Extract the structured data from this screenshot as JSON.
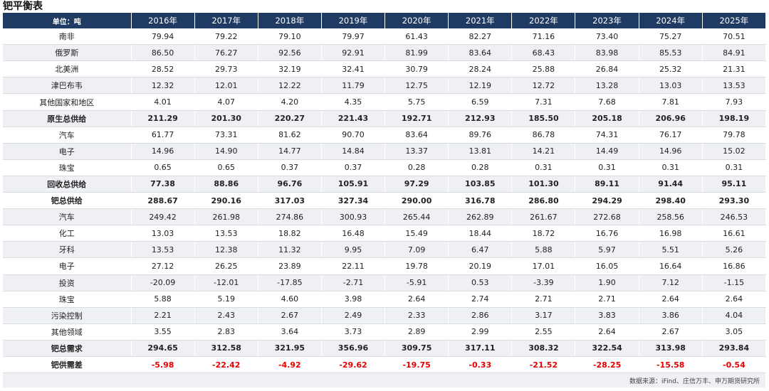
{
  "title": "钯平衡表",
  "header": [
    "单位：吨",
    "2016年",
    "2017年",
    "2018年",
    "2019年",
    "2020年",
    "2021年",
    "2022年",
    "2023年",
    "2024年",
    "2025年"
  ],
  "rows": [
    {
      "label": "南非",
      "style": "normal",
      "values": [
        "79.94",
        "79.22",
        "79.10",
        "79.97",
        "61.43",
        "82.27",
        "71.16",
        "73.40",
        "75.27",
        "70.51"
      ]
    },
    {
      "label": "俄罗斯",
      "style": "normal",
      "values": [
        "86.50",
        "76.27",
        "92.56",
        "92.91",
        "81.99",
        "83.64",
        "68.43",
        "83.98",
        "85.53",
        "84.91"
      ]
    },
    {
      "label": "北美洲",
      "style": "normal",
      "values": [
        "28.52",
        "29.73",
        "32.19",
        "32.41",
        "30.79",
        "28.24",
        "25.88",
        "26.84",
        "25.32",
        "21.31"
      ]
    },
    {
      "label": "津巴布韦",
      "style": "normal",
      "values": [
        "12.32",
        "12.01",
        "12.22",
        "11.79",
        "12.75",
        "12.19",
        "12.72",
        "13.28",
        "13.03",
        "13.53"
      ]
    },
    {
      "label": "其他国家和地区",
      "style": "normal",
      "values": [
        "4.01",
        "4.07",
        "4.20",
        "4.35",
        "5.75",
        "6.59",
        "7.31",
        "7.68",
        "7.81",
        "7.93"
      ]
    },
    {
      "label": "原生总供给",
      "style": "bold",
      "values": [
        "211.29",
        "201.30",
        "220.27",
        "221.43",
        "192.71",
        "212.93",
        "185.50",
        "205.18",
        "206.96",
        "198.19"
      ]
    },
    {
      "label": "汽车",
      "style": "normal",
      "values": [
        "61.77",
        "73.31",
        "81.62",
        "90.70",
        "83.64",
        "89.76",
        "86.78",
        "74.31",
        "76.17",
        "79.78"
      ]
    },
    {
      "label": "电子",
      "style": "normal",
      "values": [
        "14.96",
        "14.90",
        "14.77",
        "14.84",
        "13.37",
        "13.81",
        "14.21",
        "14.49",
        "14.96",
        "15.02"
      ]
    },
    {
      "label": "珠宝",
      "style": "normal",
      "values": [
        "0.65",
        "0.65",
        "0.37",
        "0.37",
        "0.28",
        "0.28",
        "0.31",
        "0.31",
        "0.31",
        "0.31"
      ]
    },
    {
      "label": "回收总供给",
      "style": "bold",
      "values": [
        "77.38",
        "88.86",
        "96.76",
        "105.91",
        "97.29",
        "103.85",
        "101.30",
        "89.11",
        "91.44",
        "95.11"
      ]
    },
    {
      "label": "钯总供给",
      "style": "bold",
      "values": [
        "288.67",
        "290.16",
        "317.03",
        "327.34",
        "290.00",
        "316.78",
        "286.80",
        "294.29",
        "298.40",
        "293.30"
      ]
    },
    {
      "label": "汽车",
      "style": "normal",
      "values": [
        "249.42",
        "261.98",
        "274.86",
        "300.93",
        "265.44",
        "262.89",
        "261.67",
        "272.68",
        "258.56",
        "246.53"
      ]
    },
    {
      "label": "化工",
      "style": "normal",
      "values": [
        "13.03",
        "13.53",
        "18.82",
        "16.48",
        "15.49",
        "18.44",
        "18.72",
        "16.76",
        "16.98",
        "16.61"
      ]
    },
    {
      "label": "牙科",
      "style": "normal",
      "values": [
        "13.53",
        "12.38",
        "11.32",
        "9.95",
        "7.09",
        "6.47",
        "5.88",
        "5.97",
        "5.51",
        "5.26"
      ]
    },
    {
      "label": "电子",
      "style": "normal",
      "values": [
        "27.12",
        "26.25",
        "23.89",
        "22.11",
        "19.78",
        "20.19",
        "17.01",
        "16.05",
        "16.64",
        "16.86"
      ]
    },
    {
      "label": "投资",
      "style": "normal",
      "values": [
        "-20.09",
        "-12.01",
        "-17.85",
        "-2.71",
        "-5.91",
        "0.53",
        "-3.39",
        "1.90",
        "7.12",
        "-1.15"
      ]
    },
    {
      "label": "珠宝",
      "style": "normal",
      "values": [
        "5.88",
        "5.19",
        "4.60",
        "3.98",
        "2.64",
        "2.74",
        "2.71",
        "2.71",
        "2.64",
        "2.64"
      ]
    },
    {
      "label": "污染控制",
      "style": "normal",
      "values": [
        "2.21",
        "2.43",
        "2.67",
        "2.49",
        "2.33",
        "2.86",
        "3.17",
        "3.83",
        "3.86",
        "4.04"
      ]
    },
    {
      "label": "其他领域",
      "style": "normal",
      "values": [
        "3.55",
        "2.83",
        "3.64",
        "3.73",
        "2.89",
        "2.99",
        "2.55",
        "2.64",
        "2.67",
        "3.05"
      ]
    },
    {
      "label": "钯总需求",
      "style": "bold",
      "values": [
        "294.65",
        "312.58",
        "321.95",
        "356.96",
        "309.75",
        "317.11",
        "308.32",
        "322.54",
        "313.98",
        "293.84"
      ]
    },
    {
      "label": "钯供需差",
      "style": "diff",
      "values": [
        "-5.98",
        "-22.42",
        "-4.92",
        "-29.62",
        "-19.75",
        "-0.33",
        "-21.52",
        "-28.25",
        "-15.58",
        "-0.54"
      ]
    }
  ],
  "source": "数据来源：iFind、庄信万丰、申万期货研究所",
  "colors": {
    "header_bg": "#1f3b63",
    "stripe": "#eef0f4",
    "negative_red": "#e60000"
  }
}
